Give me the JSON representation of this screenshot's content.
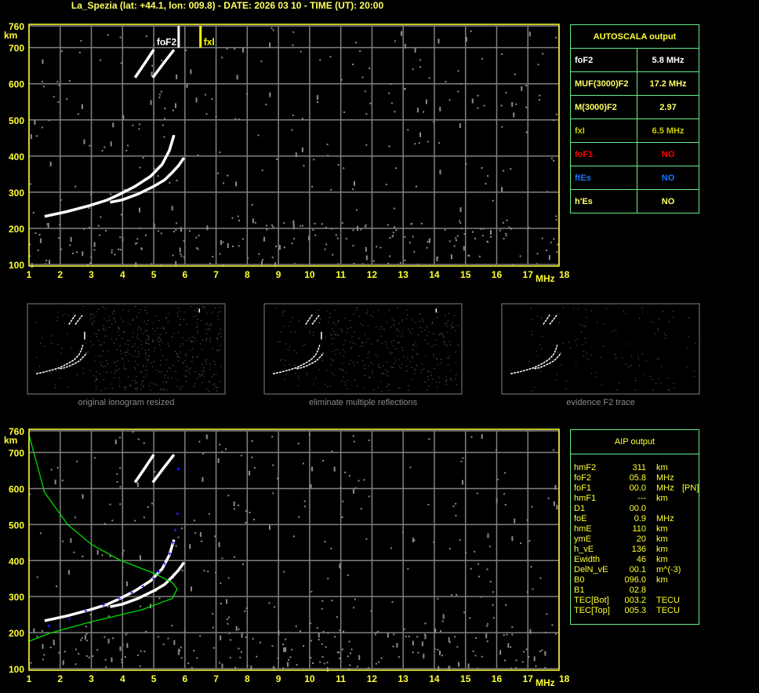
{
  "title": "La_Spezia (lat: +44.1, lon: 009.8) - DATE: 2026 03 10 - TIME (UT): 20:00",
  "colors": {
    "axis": "#ffff33",
    "grid": "#808080",
    "trace": "#ffffff",
    "noise": "#8c8c8c",
    "profile": "#00dd00",
    "aip_points": "#1a1aff",
    "table_border": "#66ee88"
  },
  "chart_data": [
    {
      "type": "scatter",
      "name": "autoscala-ionogram",
      "xlabel": "MHz",
      "ylabel": "km",
      "xlim": [
        1,
        18
      ],
      "ylim": [
        100,
        760
      ],
      "xticks": [
        "1",
        "2",
        "3",
        "4",
        "5",
        "6",
        "7",
        "8",
        "9",
        "10",
        "11",
        "12",
        "13",
        "14",
        "15",
        "16",
        "17",
        "18"
      ],
      "yticks": [
        "100",
        "200",
        "300",
        "400",
        "500",
        "600",
        "700",
        "760"
      ],
      "grid": true,
      "traces": [
        {
          "freq": [
            1.5,
            2.2,
            2.9,
            3.5,
            3.9,
            4.4,
            4.9,
            5.27,
            5.5,
            5.65
          ],
          "height": [
            233,
            246,
            262,
            278,
            294,
            316,
            344,
            377,
            415,
            458
          ]
        },
        {
          "freq": [
            3.6,
            4.0,
            4.5,
            5.0,
            5.35,
            5.6,
            5.8,
            5.97
          ],
          "height": [
            272,
            279,
            295,
            316,
            334,
            355,
            374,
            395
          ]
        },
        {
          "freq": [
            4.4,
            4.7,
            5.0
          ],
          "height": [
            617,
            655,
            694
          ]
        },
        {
          "freq": [
            4.97,
            5.3,
            5.65
          ],
          "height": [
            617,
            655,
            694
          ]
        }
      ],
      "markers": [
        {
          "label": "foF2",
          "freq": 5.8,
          "color": "#ffffff"
        },
        {
          "label": "fxl",
          "freq": 6.5,
          "color": "#ffff00"
        }
      ]
    },
    {
      "type": "scatter",
      "name": "aip-ionogram",
      "xlabel": "MHz",
      "ylabel": "km",
      "xlim": [
        1,
        18
      ],
      "ylim": [
        100,
        760
      ],
      "xticks": [
        "1",
        "2",
        "3",
        "4",
        "5",
        "6",
        "7",
        "8",
        "9",
        "10",
        "11",
        "12",
        "13",
        "14",
        "15",
        "16",
        "17",
        "18"
      ],
      "yticks": [
        "100",
        "200",
        "300",
        "400",
        "500",
        "600",
        "700",
        "760"
      ],
      "grid": true,
      "traces": [
        {
          "freq": [
            1.5,
            2.2,
            2.9,
            3.5,
            3.9,
            4.4,
            4.9,
            5.27,
            5.5,
            5.65
          ],
          "height": [
            233,
            246,
            262,
            278,
            294,
            316,
            344,
            377,
            415,
            458
          ]
        },
        {
          "freq": [
            3.6,
            4.0,
            4.5,
            5.0,
            5.35,
            5.6,
            5.8,
            5.97
          ],
          "height": [
            272,
            279,
            295,
            316,
            334,
            355,
            374,
            395
          ]
        },
        {
          "freq": [
            4.4,
            4.7,
            5.0
          ],
          "height": [
            617,
            655,
            694
          ]
        },
        {
          "freq": [
            4.97,
            5.3,
            5.65
          ],
          "height": [
            617,
            655,
            694
          ]
        }
      ],
      "profile": {
        "freq": [
          1.0,
          1.5,
          2.25,
          3.0,
          3.9,
          5.0,
          5.6,
          5.75,
          5.6,
          4.6,
          2.9,
          1.65,
          1.0
        ],
        "height": [
          749,
          589,
          499,
          445,
          402,
          365,
          339,
          321,
          295,
          263,
          228,
          198,
          176
        ]
      },
      "aip_points": {
        "freq": [
          1.0,
          1.65,
          2.3,
          2.83,
          3.4,
          3.9,
          4.3,
          4.67,
          5.0,
          5.17,
          5.35,
          5.52,
          5.62,
          5.7,
          5.77,
          5.8
        ],
        "height": [
          202,
          219,
          238,
          260,
          278,
          295,
          311,
          328,
          350,
          369,
          392,
          419,
          450,
          484,
          530,
          654
        ]
      }
    }
  ],
  "thumbnails": [
    {
      "label": "original ionogram resized"
    },
    {
      "label": "eliminate multiple reflections"
    },
    {
      "label": "evidence F2 trace"
    }
  ],
  "autoscala": {
    "header": "AUTOSCALA output",
    "rows": [
      {
        "name": "foF2",
        "value": "5.8 MHz",
        "color": "#ffffff"
      },
      {
        "name": "MUF(3000)F2",
        "value": "17.2 MHz",
        "color": "#ffff66"
      },
      {
        "name": "M(3000)F2",
        "value": "2.97",
        "color": "#ffff66"
      },
      {
        "name": "fxI",
        "value": "6.5 MHz",
        "color": "#cccc00"
      },
      {
        "name": "foF1",
        "value": "NO",
        "color": "#ff0000"
      },
      {
        "name": "ftEs",
        "value": "NO",
        "color": "#1a75ff"
      },
      {
        "name": "h'Es",
        "value": "NO",
        "color": "#ffff66"
      }
    ]
  },
  "aip": {
    "header": "AIP output",
    "rows": [
      {
        "name": "hmF2",
        "value": "311",
        "unit": "km",
        "extra": ""
      },
      {
        "name": "foF2",
        "value": "05.8",
        "unit": "MHz",
        "extra": ""
      },
      {
        "name": "foF1",
        "value": "00.0",
        "unit": "MHz",
        "extra": "[PN]"
      },
      {
        "name": "hmF1",
        "value": "---",
        "unit": "km",
        "extra": ""
      },
      {
        "name": "D1",
        "value": "00.0",
        "unit": "",
        "extra": ""
      },
      {
        "name": "foE",
        "value": "0.9",
        "unit": "MHz",
        "extra": ""
      },
      {
        "name": "hmE",
        "value": "110",
        "unit": "km",
        "extra": ""
      },
      {
        "name": "ymE",
        "value": "20",
        "unit": "km",
        "extra": ""
      },
      {
        "name": "h_vE",
        "value": "136",
        "unit": "km",
        "extra": ""
      },
      {
        "name": "Ewidth",
        "value": "46",
        "unit": "km",
        "extra": ""
      },
      {
        "name": "DelN_vE",
        "value": "00.1",
        "unit": "m^(-3)",
        "extra": ""
      },
      {
        "name": "B0",
        "value": "096.0",
        "unit": "km",
        "extra": ""
      },
      {
        "name": "B1",
        "value": "02.8",
        "unit": "",
        "extra": ""
      },
      {
        "name": "TEC[Bot]",
        "value": "003.2",
        "unit": "TECU",
        "extra": ""
      },
      {
        "name": "TEC[Top]",
        "value": "005.3",
        "unit": "TECU",
        "extra": ""
      }
    ]
  }
}
